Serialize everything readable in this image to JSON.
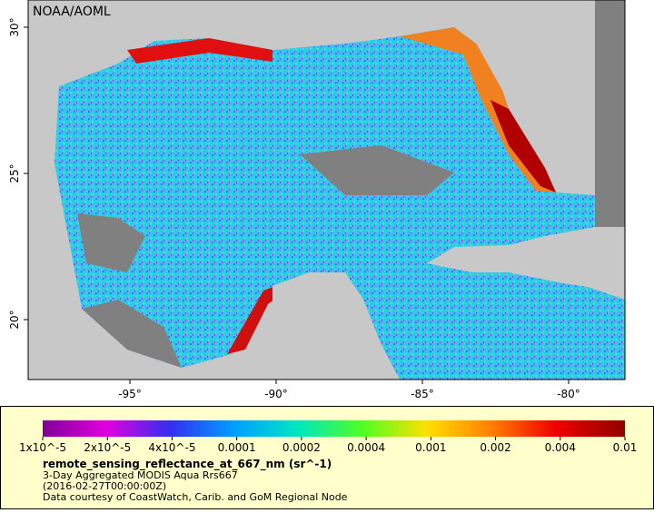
{
  "map": {
    "credit": "NOAA/AOML",
    "lat_ticks": [
      "20°",
      "25°",
      "30°"
    ],
    "lon_ticks": [
      "-95°",
      "-90°",
      "-85°",
      "-80°"
    ]
  },
  "colorbar": {
    "labels": [
      "1x10^-5",
      "2x10^-5",
      "4x10^-5",
      "0.0001",
      "0.0002",
      "0.0004",
      "0.001",
      "0.002",
      "0.004",
      "0.01"
    ]
  },
  "legend": {
    "variable": "remote_sensing_reflectance_at_667_nm (sr^-1)",
    "description": "3-Day Aggregated MODIS Aqua Rrs667",
    "time": "(2016-02-27T00:00:00Z)",
    "source": "Data courtesy of CoastWatch, Carib. and GoM Regional Node"
  }
}
